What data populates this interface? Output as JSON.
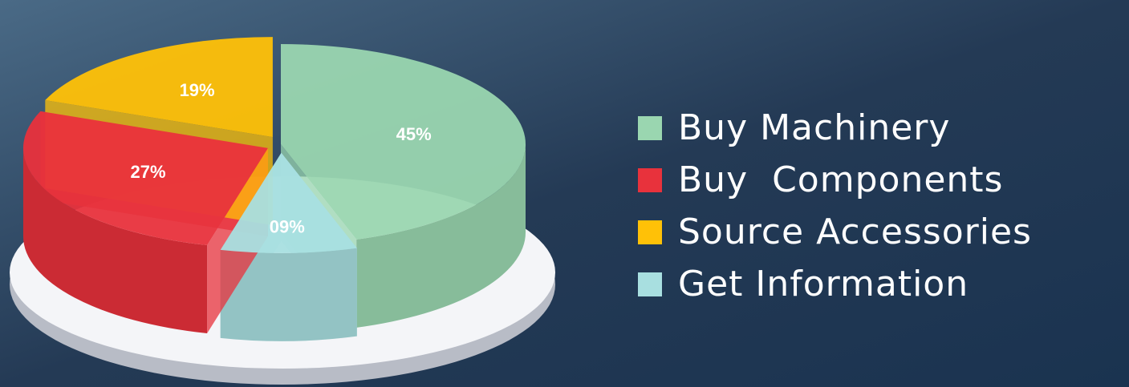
{
  "chart_data": {
    "type": "pie",
    "categories": [
      "Buy Machinery",
      "Buy  Components",
      "Source Accessories",
      "Get Information"
    ],
    "values": [
      45,
      27,
      19,
      9
    ],
    "value_labels": [
      "45%",
      "27%",
      "19%",
      "09%"
    ],
    "colors": [
      "#9ad6b0",
      "#e8323c",
      "#ffc107",
      "#a8dfe0"
    ],
    "legend": "right"
  }
}
